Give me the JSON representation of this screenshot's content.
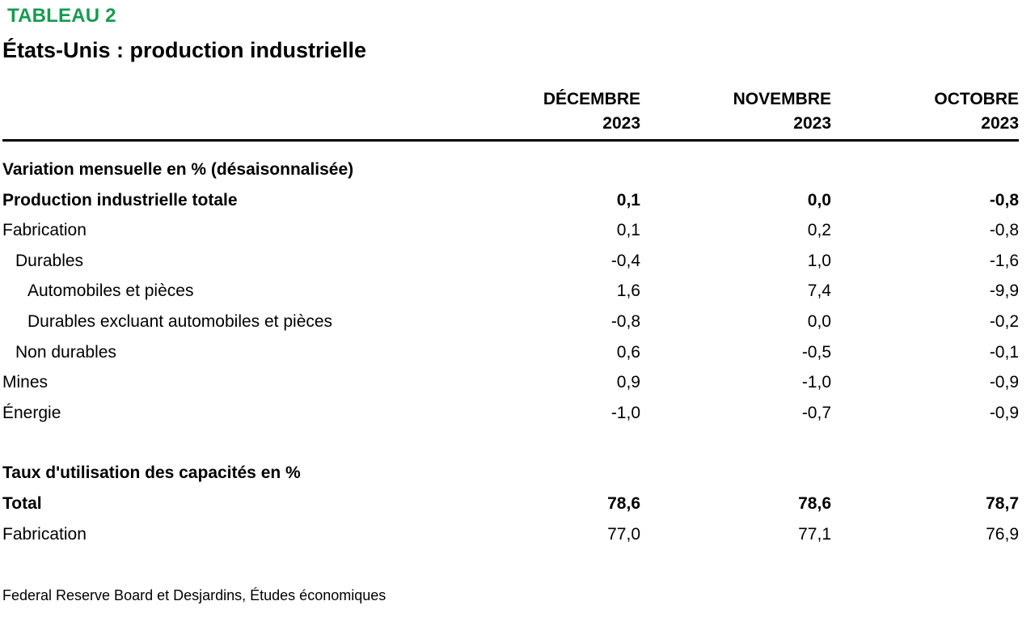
{
  "page": {
    "tag": "TABLEAU 2",
    "title": "États-Unis : production industrielle",
    "source": "Federal Reserve Board et Desjardins, Études économiques",
    "accent_color": "#169b4e"
  },
  "table": {
    "columns": [
      {
        "month": "DÉCEMBRE",
        "year": "2023"
      },
      {
        "month": "NOVEMBRE",
        "year": "2023"
      },
      {
        "month": "OCTOBRE",
        "year": "2023"
      }
    ],
    "sections": [
      {
        "header": "Variation mensuelle en % (désaisonnalisée)",
        "rows": [
          {
            "label": "Production industrielle totale",
            "bold": true,
            "indent": 0,
            "values": [
              "0,1",
              "0,0",
              "-0,8"
            ]
          },
          {
            "label": "Fabrication",
            "bold": false,
            "indent": 0,
            "values": [
              "0,1",
              "0,2",
              "-0,8"
            ]
          },
          {
            "label": "Durables",
            "bold": false,
            "indent": 1,
            "values": [
              "-0,4",
              "1,0",
              "-1,6"
            ]
          },
          {
            "label": "Automobiles et pièces",
            "bold": false,
            "indent": 2,
            "values": [
              "1,6",
              "7,4",
              "-9,9"
            ]
          },
          {
            "label": "Durables excluant automobiles et pièces",
            "bold": false,
            "indent": 2,
            "values": [
              "-0,8",
              "0,0",
              "-0,2"
            ]
          },
          {
            "label": "Non durables",
            "bold": false,
            "indent": 1,
            "values": [
              "0,6",
              "-0,5",
              "-0,1"
            ]
          },
          {
            "label": "Mines",
            "bold": false,
            "indent": 0,
            "values": [
              "0,9",
              "-1,0",
              "-0,9"
            ]
          },
          {
            "label": "Énergie",
            "bold": false,
            "indent": 0,
            "values": [
              "-1,0",
              "-0,7",
              "-0,9"
            ]
          }
        ]
      },
      {
        "header": "Taux d'utilisation des capacités en %",
        "rows": [
          {
            "label": "Total",
            "bold": true,
            "indent": 0,
            "values": [
              "78,6",
              "78,6",
              "78,7"
            ]
          },
          {
            "label": "Fabrication",
            "bold": false,
            "indent": 0,
            "values": [
              "77,0",
              "77,1",
              "76,9"
            ]
          }
        ]
      }
    ]
  },
  "chart_data": {
    "type": "table",
    "table_number": "TABLEAU 2",
    "title": "États-Unis : production industrielle",
    "columns": [
      "DÉCEMBRE 2023",
      "NOVEMBRE 2023",
      "OCTOBRE 2023"
    ],
    "sections": [
      {
        "name": "Variation mensuelle en % (désaisonnalisée)",
        "rows": [
          {
            "label": "Production industrielle totale",
            "values": [
              0.1,
              0.0,
              -0.8
            ]
          },
          {
            "label": "Fabrication",
            "values": [
              0.1,
              0.2,
              -0.8
            ]
          },
          {
            "label": "Durables",
            "values": [
              -0.4,
              1.0,
              -1.6
            ]
          },
          {
            "label": "Automobiles et pièces",
            "values": [
              1.6,
              7.4,
              -9.9
            ]
          },
          {
            "label": "Durables excluant automobiles et pièces",
            "values": [
              -0.8,
              0.0,
              -0.2
            ]
          },
          {
            "label": "Non durables",
            "values": [
              0.6,
              -0.5,
              -0.1
            ]
          },
          {
            "label": "Mines",
            "values": [
              0.9,
              -1.0,
              -0.9
            ]
          },
          {
            "label": "Énergie",
            "values": [
              -1.0,
              -0.7,
              -0.9
            ]
          }
        ]
      },
      {
        "name": "Taux d'utilisation des capacités en %",
        "rows": [
          {
            "label": "Total",
            "values": [
              78.6,
              78.6,
              78.7
            ]
          },
          {
            "label": "Fabrication",
            "values": [
              77.0,
              77.1,
              76.9
            ]
          }
        ]
      }
    ],
    "source": "Federal Reserve Board et Desjardins, Études économiques"
  }
}
